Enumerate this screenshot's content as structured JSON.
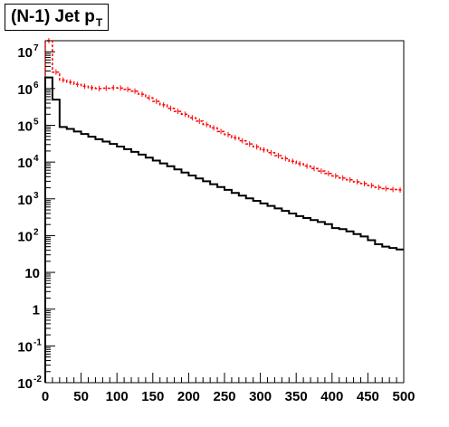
{
  "title": {
    "main": "(N-1) Jet p",
    "sub": "T"
  },
  "chart_data": {
    "type": "histogram",
    "title": "(N-1) Jet pT",
    "xlabel": "",
    "ylabel": "",
    "xlim": [
      0,
      500
    ],
    "ylim": [
      0.01,
      20000000
    ],
    "yscale": "log",
    "grid": false,
    "legend": "none",
    "x_ticks": [
      "0",
      "50",
      "100",
      "150",
      "200",
      "250",
      "300",
      "350",
      "400",
      "450",
      "500"
    ],
    "y_ticks": [
      {
        "value": 0.01,
        "base": "10",
        "exp": "-2"
      },
      {
        "value": 0.1,
        "base": "10",
        "exp": "-1"
      },
      {
        "value": 1,
        "base": "1",
        "exp": ""
      },
      {
        "value": 10,
        "base": "10",
        "exp": ""
      },
      {
        "value": 100,
        "base": "10",
        "exp": "2"
      },
      {
        "value": 1000,
        "base": "10",
        "exp": "3"
      },
      {
        "value": 10000,
        "base": "10",
        "exp": "4"
      },
      {
        "value": 100000,
        "base": "10",
        "exp": "5"
      },
      {
        "value": 1000000,
        "base": "10",
        "exp": "6"
      },
      {
        "value": 10000000,
        "base": "10",
        "exp": "7"
      }
    ],
    "bin_edges_start": 0,
    "bin_width": 10,
    "series": [
      {
        "color": "#ff0000",
        "style": "dashed-with-errors",
        "values": [
          20000000,
          2800000,
          1700000,
          1500000,
          1300000,
          1150000,
          1050000,
          1000000,
          1020000,
          1050000,
          1030000,
          950000,
          850000,
          700000,
          560000,
          450000,
          360000,
          290000,
          240000,
          200000,
          160000,
          130000,
          105000,
          85000,
          68000,
          56000,
          46000,
          38000,
          31000,
          26000,
          21500,
          18000,
          15000,
          12500,
          10500,
          9000,
          7800,
          6700,
          5700,
          4900,
          4200,
          3700,
          3300,
          2900,
          2600,
          2300,
          2050,
          1900,
          1800,
          1750
        ]
      },
      {
        "color": "#000000",
        "style": "solid",
        "values": [
          2000000,
          500000,
          90000,
          80000,
          68000,
          58000,
          49000,
          42000,
          36000,
          31000,
          26500,
          22500,
          19000,
          16000,
          13200,
          11000,
          9200,
          7700,
          6300,
          5200,
          4300,
          3600,
          3000,
          2500,
          2100,
          1750,
          1450,
          1220,
          1030,
          880,
          750,
          640,
          550,
          470,
          400,
          340,
          300,
          265,
          235,
          205,
          160,
          150,
          130,
          110,
          95,
          75,
          58,
          50,
          46,
          42
        ]
      }
    ]
  }
}
